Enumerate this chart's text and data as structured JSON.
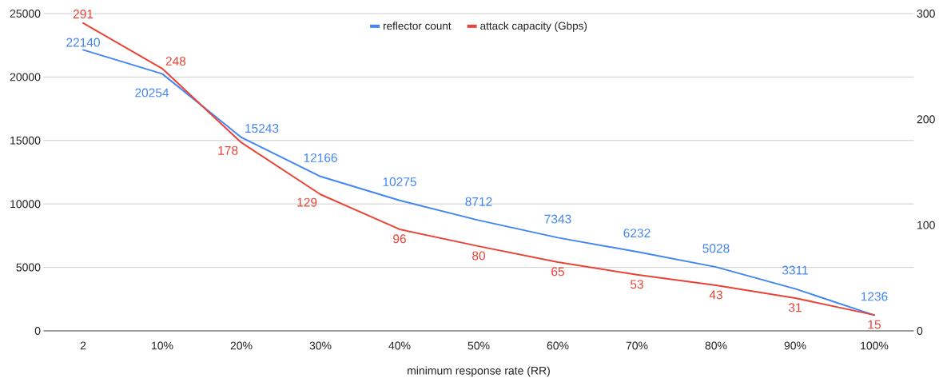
{
  "chart_data": {
    "type": "line",
    "xlabel": "minimum response rate (RR)",
    "categories": [
      "2",
      "10%",
      "20%",
      "30%",
      "40%",
      "50%",
      "60%",
      "70%",
      "80%",
      "90%",
      "100%"
    ],
    "series": [
      {
        "name": "reflector count",
        "color": "#4285f4",
        "values": [
          22140,
          20254,
          15243,
          12166,
          10275,
          8712,
          7343,
          6232,
          5028,
          3311,
          1236
        ]
      },
      {
        "name": "attack capacity (Gbps)",
        "color": "#ea4335",
        "axis": "y2",
        "values": [
          291,
          248,
          178,
          129,
          96,
          80,
          65,
          53,
          43,
          31,
          15
        ]
      }
    ],
    "ylim": [
      0,
      25000
    ],
    "yticks": [
      0,
      5000,
      10000,
      15000,
      20000,
      25000
    ],
    "y2lim": [
      0,
      300
    ],
    "y2ticks": [
      0,
      100,
      200,
      300
    ],
    "grid": "y",
    "legend": "top",
    "marker": "none",
    "data_labels": true
  }
}
